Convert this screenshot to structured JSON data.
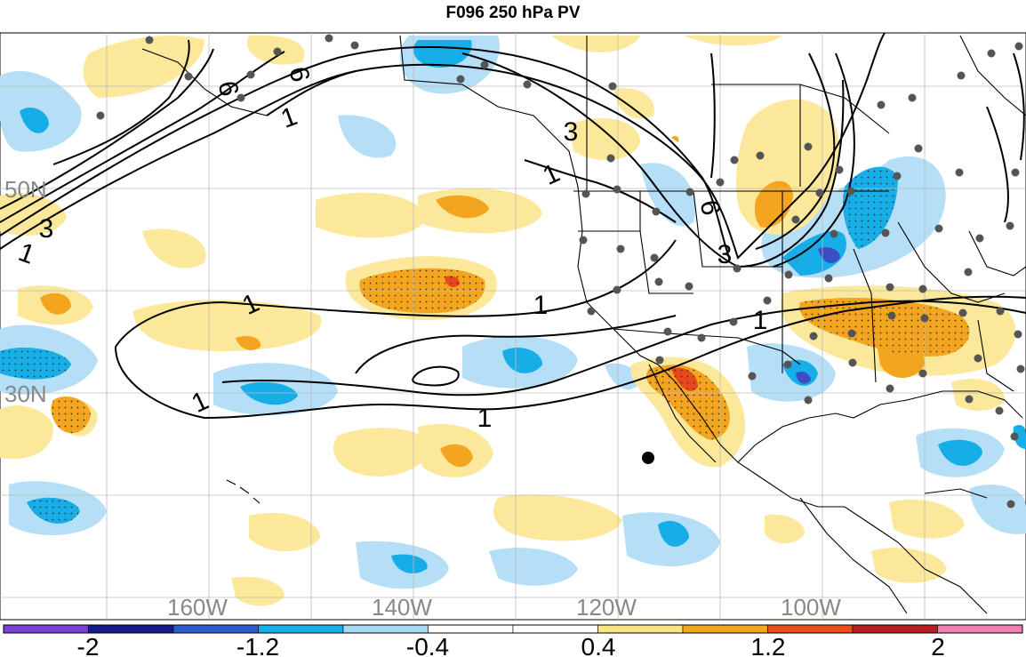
{
  "title": "F096 250 hPa PV",
  "map": {
    "lat_labels": [
      "50N",
      "30N"
    ],
    "lon_labels": [
      "160W",
      "140W",
      "120W",
      "100W"
    ],
    "contour_labels": [
      "6",
      "6",
      "1",
      "3",
      "1",
      "3",
      "1",
      "1",
      "1",
      "1",
      "1",
      "6",
      "3",
      "1"
    ],
    "colors": {
      "neg_strong": "#3a4fc4",
      "neg_mid": "#17aee8",
      "neg_weak": "#b4dff7",
      "pos_weak": "#fce89a",
      "pos_mid": "#f4a51f",
      "pos_strong": "#e8481c",
      "grid": "#bbbbbb",
      "station": "#555555",
      "label_gray": "#888888"
    }
  },
  "colorbar": {
    "tick_labels": [
      "-2",
      "-1.2",
      "-0.4",
      "0.4",
      "1.2",
      "2"
    ],
    "colors": [
      "#7b3fd1",
      "#151a8c",
      "#2f5bd0",
      "#13b0ec",
      "#a9d8f5",
      "#ffffff",
      "#ffffff",
      "#fbe37f",
      "#f4a51f",
      "#e84f18",
      "#b71f25",
      "#f17fb1"
    ]
  }
}
